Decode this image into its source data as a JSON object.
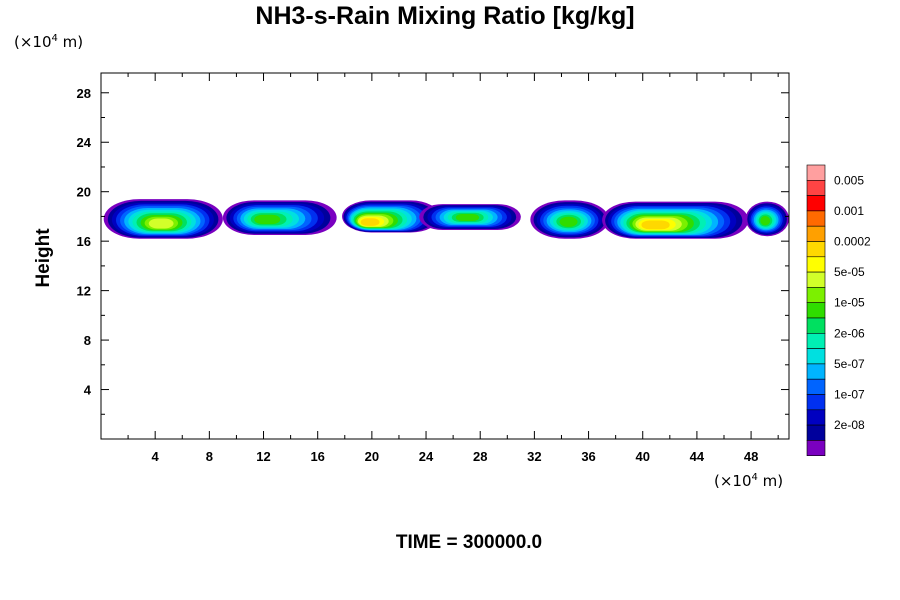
{
  "title": "NH3-s-Rain Mixing Ratio [kg/kg]",
  "y_unit": {
    "prefix": "(×10",
    "exp": "4",
    "suffix": " m)"
  },
  "x_unit": {
    "prefix": "(×10",
    "exp": "4",
    "suffix": " m)"
  },
  "footer": "TIME = 300000.0",
  "chart_data": {
    "type": "heatmap",
    "title": "NH3-s-Rain Mixing Ratio [kg/kg]",
    "xlabel": "",
    "ylabel": "Height",
    "x_unit": "×10^4 m",
    "y_unit": "×10^4 m",
    "xlim": [
      0,
      50.8
    ],
    "ylim": [
      0,
      29.6
    ],
    "x_ticks": [
      4,
      8,
      12,
      16,
      20,
      24,
      28,
      32,
      36,
      40,
      44,
      48
    ],
    "y_ticks": [
      4,
      8,
      12,
      16,
      20,
      24,
      28
    ],
    "colorbar": {
      "labels": [
        "0.005",
        "0.001",
        "0.0002",
        "5e-05",
        "1e-05",
        "2e-06",
        "5e-07",
        "1e-07",
        "2e-08"
      ],
      "colors": [
        "#ff9f9f",
        "#ff4444",
        "#ff0000",
        "#ff6a00",
        "#ffa000",
        "#ffd800",
        "#ffff00",
        "#d2ff2a",
        "#7cf000",
        "#2fdc00",
        "#00e060",
        "#00f0b4",
        "#00e0e0",
        "#00b4ff",
        "#0064ff",
        "#0030f0",
        "#0000c0",
        "#00009c",
        "#7a00c0"
      ]
    },
    "cells": [
      {
        "x": [
          0.2,
          9.0
        ],
        "y": [
          16.2,
          19.4
        ],
        "core_x": 4.4,
        "core_y": 17.3,
        "peak": "1e-05"
      },
      {
        "x": [
          9.0,
          17.4
        ],
        "y": [
          16.5,
          19.3
        ],
        "core_x": 12.0,
        "core_y": 17.7,
        "peak": "2e-06"
      },
      {
        "x": [
          17.8,
          25.0
        ],
        "y": [
          16.7,
          19.3
        ],
        "core_x": 19.5,
        "core_y": 17.4,
        "peak": "5e-05"
      },
      {
        "x": [
          23.5,
          31.0
        ],
        "y": [
          16.9,
          19.0
        ],
        "core_x": 27.0,
        "core_y": 17.9,
        "peak": "2e-06"
      },
      {
        "x": [
          31.7,
          37.5
        ],
        "y": [
          16.2,
          19.3
        ],
        "core_x": 34.5,
        "core_y": 17.5,
        "peak": "2e-06"
      },
      {
        "x": [
          37.0,
          47.8
        ],
        "y": [
          16.2,
          19.2
        ],
        "core_x": 40.6,
        "core_y": 17.2,
        "peak": "5e-05"
      },
      {
        "x": [
          47.6,
          50.8
        ],
        "y": [
          16.4,
          19.2
        ],
        "core_x": 49.0,
        "core_y": 17.6,
        "peak": "2e-06"
      }
    ]
  }
}
